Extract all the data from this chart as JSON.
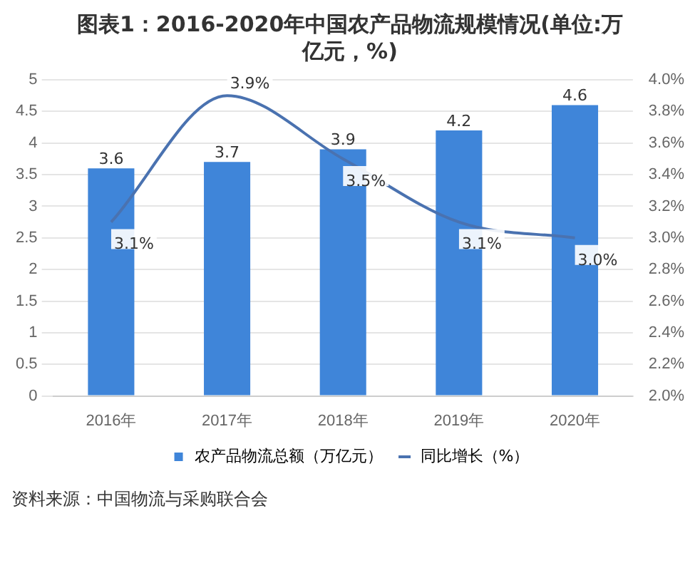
{
  "chart_data": {
    "type": "bar",
    "title": "图表1：2016-2020年中国农产品物流规模情况(单位:万亿元，%)",
    "categories": [
      "2016年",
      "2017年",
      "2018年",
      "2019年",
      "2020年"
    ],
    "series": [
      {
        "name": "农产品物流总额（万亿元）",
        "color": "#3f85d9",
        "values": [
          3.6,
          3.7,
          3.9,
          4.2,
          4.6
        ]
      },
      {
        "name": "同比增长（%）",
        "type": "line",
        "axis": "y2",
        "color": "#4a72b0",
        "values": [
          3.1,
          3.9,
          3.5,
          3.1,
          3.0
        ],
        "value_labels": [
          "3.1%",
          "3.9%",
          "3.5%",
          "3.1%",
          "3.0%"
        ]
      }
    ],
    "ylim": [
      0,
      5
    ],
    "yticks": [
      0,
      0.5,
      1,
      1.5,
      2,
      2.5,
      3,
      3.5,
      4,
      4.5,
      5
    ],
    "y2lim": [
      2.0,
      4.0
    ],
    "y2ticks": [
      {
        "value": 2.0,
        "label": "2.0%"
      },
      {
        "value": 2.2,
        "label": "2.2%"
      },
      {
        "value": 2.4,
        "label": "2.4%"
      },
      {
        "value": 2.6,
        "label": "2.6%"
      },
      {
        "value": 2.8,
        "label": "2.8%"
      },
      {
        "value": 3.0,
        "label": "3.0%"
      },
      {
        "value": 3.2,
        "label": "3.2%"
      },
      {
        "value": 3.4,
        "label": "3.4%"
      },
      {
        "value": 3.6,
        "label": "3.6%"
      },
      {
        "value": 3.8,
        "label": "3.8%"
      },
      {
        "value": 4.0,
        "label": "4.0%"
      }
    ],
    "grid": "y",
    "legend": "bottom",
    "data_labels": true,
    "marker": "none",
    "annotations": [
      "资料来源：中国物流与采购联合会"
    ]
  }
}
